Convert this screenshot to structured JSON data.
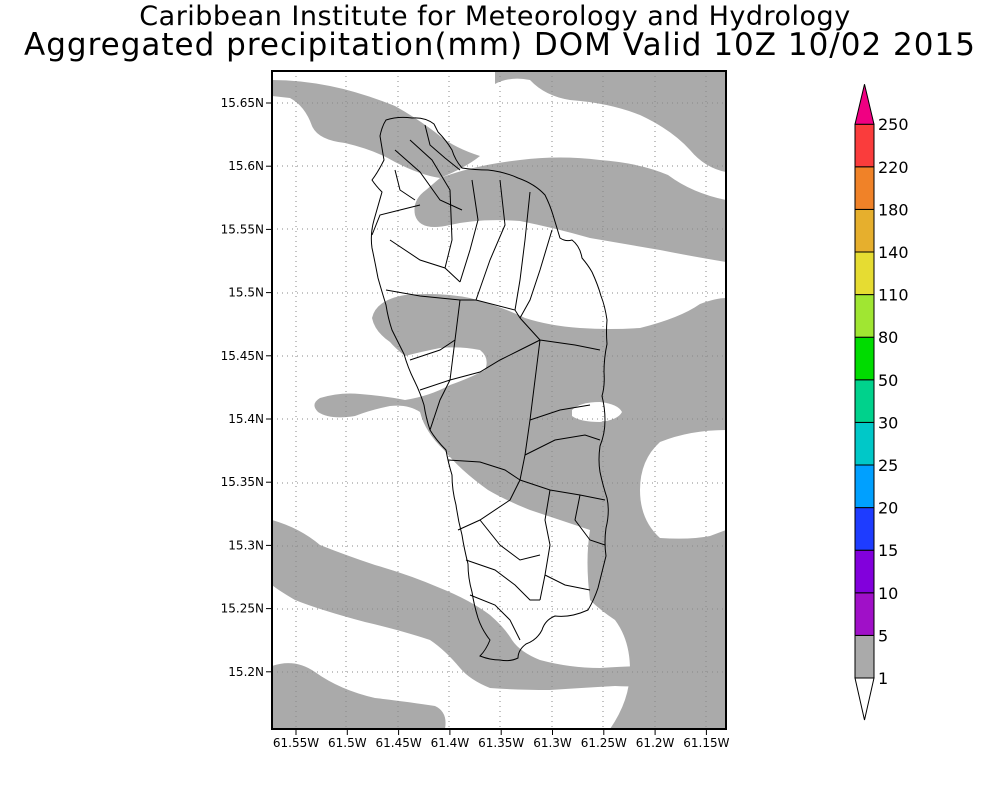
{
  "header": {
    "title": "Caribbean Institute for Meteorology and Hydrology",
    "subtitle": "Aggregated precipitation(mm) DOM Valid 10Z 10/02 2015"
  },
  "map": {
    "lat_ticks": [
      "15.65N",
      "15.6N",
      "15.55N",
      "15.5N",
      "15.45N",
      "15.4N",
      "15.35N",
      "15.3N",
      "15.25N",
      "15.2N"
    ],
    "lon_ticks": [
      "61.55W",
      "61.5W",
      "61.45W",
      "61.4W",
      "61.35W",
      "61.3W",
      "61.25W",
      "61.2W",
      "61.15W"
    ],
    "shaded_class_color": "#aaaaaa",
    "coastline_color": "#000000"
  },
  "colorbar": {
    "labels": [
      "1",
      "5",
      "10",
      "15",
      "20",
      "25",
      "30",
      "50",
      "80",
      "110",
      "140",
      "180",
      "220",
      "250"
    ],
    "colors": [
      "#aaaaaa",
      "#a010c8",
      "#8200dc",
      "#1e3cff",
      "#00a0ff",
      "#00c8c8",
      "#00d28c",
      "#00dc00",
      "#a0e632",
      "#e6dc32",
      "#e6af2d",
      "#f08228",
      "#fa3c3c",
      "#f00082"
    ]
  }
}
